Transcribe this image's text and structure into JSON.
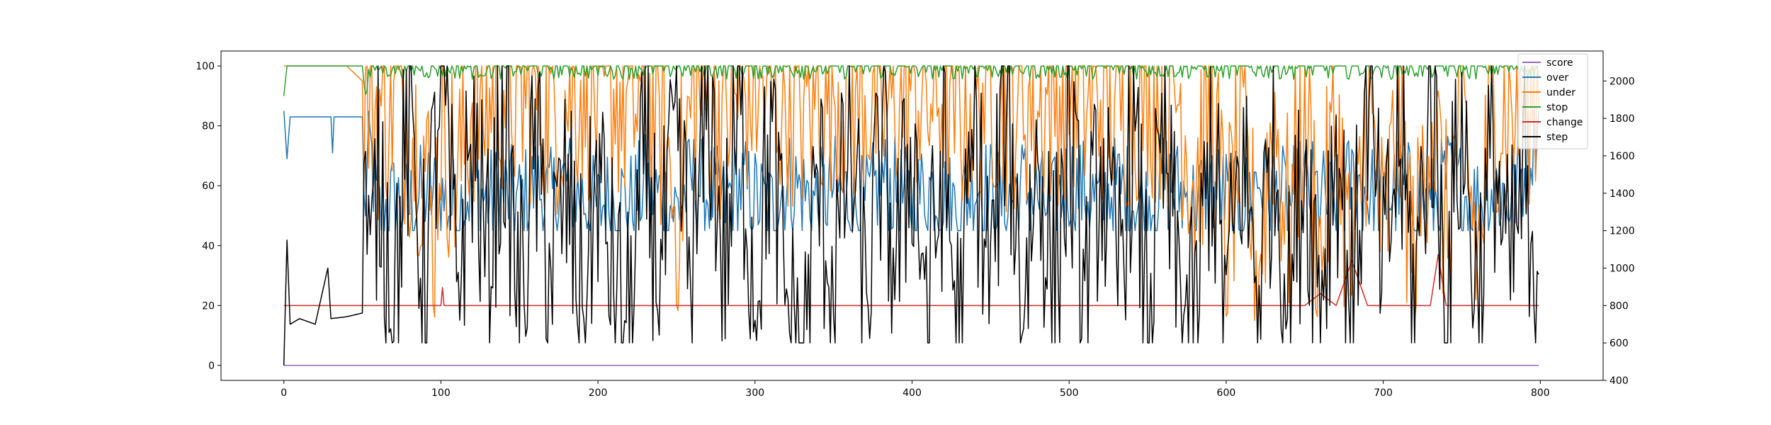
{
  "chart_data": {
    "type": "line",
    "title": "",
    "xlabel": "",
    "ylabel": "",
    "y2label": "",
    "grid": false,
    "legend_position": "top-right",
    "x_range": [
      -40,
      840
    ],
    "ylim_left": [
      -5,
      105
    ],
    "ylim_right": [
      400,
      2160
    ],
    "x_ticks": [
      0,
      100,
      200,
      300,
      400,
      500,
      600,
      700,
      800
    ],
    "y_ticks_left": [
      0,
      20,
      40,
      60,
      80,
      100
    ],
    "y_ticks_right": [
      400,
      600,
      800,
      1000,
      1200,
      1400,
      1600,
      1800,
      2000
    ],
    "x_min": 0,
    "x_max": 799,
    "series": [
      {
        "name": "score",
        "axis": "left",
        "color": "#9467bd",
        "points": [
          [
            0,
            0
          ],
          [
            799,
            0
          ]
        ]
      },
      {
        "name": "over",
        "axis": "left",
        "color": "#1f77b4",
        "points": [
          [
            0,
            85
          ],
          [
            2,
            69
          ],
          [
            4,
            83
          ],
          [
            30,
            83
          ],
          [
            31,
            71
          ],
          [
            32,
            83
          ],
          [
            50,
            83
          ],
          [
            51,
            52
          ],
          [
            55,
            72
          ],
          [
            60,
            50
          ],
          [
            70,
            55
          ],
          [
            80,
            53
          ],
          [
            90,
            58
          ],
          [
            100,
            56
          ],
          [
            110,
            52
          ],
          [
            120,
            60
          ],
          [
            130,
            55
          ],
          [
            140,
            58
          ],
          [
            150,
            54
          ],
          [
            160,
            60
          ],
          [
            170,
            55
          ],
          [
            180,
            62
          ],
          [
            190,
            56
          ],
          [
            200,
            52
          ],
          [
            210,
            58
          ],
          [
            220,
            54
          ],
          [
            230,
            60
          ],
          [
            240,
            56
          ],
          [
            250,
            52
          ],
          [
            260,
            62
          ],
          [
            270,
            58
          ],
          [
            280,
            54
          ],
          [
            290,
            60
          ],
          [
            300,
            56
          ],
          [
            310,
            52
          ],
          [
            320,
            62
          ],
          [
            330,
            58
          ],
          [
            340,
            54
          ],
          [
            350,
            60
          ],
          [
            360,
            56
          ],
          [
            370,
            52
          ],
          [
            380,
            62
          ],
          [
            390,
            58
          ],
          [
            400,
            54
          ],
          [
            410,
            60
          ],
          [
            420,
            56
          ],
          [
            430,
            52
          ],
          [
            440,
            62
          ],
          [
            450,
            58
          ],
          [
            460,
            54
          ],
          [
            470,
            60
          ],
          [
            480,
            56
          ],
          [
            490,
            52
          ],
          [
            500,
            62
          ],
          [
            510,
            58
          ],
          [
            520,
            54
          ],
          [
            530,
            60
          ],
          [
            540,
            56
          ],
          [
            550,
            52
          ],
          [
            560,
            62
          ],
          [
            570,
            58
          ],
          [
            580,
            54
          ],
          [
            590,
            60
          ],
          [
            600,
            56
          ],
          [
            610,
            52
          ],
          [
            620,
            62
          ],
          [
            630,
            58
          ],
          [
            640,
            54
          ],
          [
            650,
            60
          ],
          [
            660,
            56
          ],
          [
            670,
            52
          ],
          [
            680,
            62
          ],
          [
            690,
            58
          ],
          [
            700,
            54
          ],
          [
            710,
            60
          ],
          [
            720,
            56
          ],
          [
            730,
            52
          ],
          [
            740,
            62
          ],
          [
            750,
            58
          ],
          [
            760,
            54
          ],
          [
            770,
            60
          ],
          [
            780,
            56
          ],
          [
            790,
            65
          ],
          [
            799,
            85
          ]
        ],
        "variability_range": [
          45,
          85
        ]
      },
      {
        "name": "under",
        "axis": "left",
        "color": "#ff7f0e",
        "points": [
          [
            0,
            100
          ],
          [
            40,
            100
          ],
          [
            50,
            95
          ],
          [
            60,
            85
          ],
          [
            70,
            90
          ],
          [
            80,
            80
          ],
          [
            90,
            70
          ],
          [
            95,
            40
          ],
          [
            100,
            85
          ],
          [
            110,
            60
          ],
          [
            120,
            90
          ],
          [
            130,
            85
          ],
          [
            140,
            95
          ],
          [
            150,
            88
          ],
          [
            160,
            92
          ],
          [
            170,
            85
          ],
          [
            180,
            90
          ],
          [
            190,
            95
          ],
          [
            200,
            88
          ],
          [
            210,
            92
          ],
          [
            220,
            85
          ],
          [
            230,
            90
          ],
          [
            240,
            80
          ],
          [
            250,
            50
          ],
          [
            260,
            88
          ],
          [
            270,
            92
          ],
          [
            280,
            85
          ],
          [
            290,
            90
          ],
          [
            300,
            95
          ],
          [
            310,
            88
          ],
          [
            320,
            92
          ],
          [
            330,
            85
          ],
          [
            340,
            90
          ],
          [
            350,
            95
          ],
          [
            360,
            88
          ],
          [
            370,
            92
          ],
          [
            380,
            85
          ],
          [
            390,
            90
          ],
          [
            400,
            95
          ],
          [
            410,
            88
          ],
          [
            420,
            92
          ],
          [
            430,
            85
          ],
          [
            440,
            90
          ],
          [
            450,
            95
          ],
          [
            460,
            88
          ],
          [
            470,
            92
          ],
          [
            480,
            85
          ],
          [
            490,
            90
          ],
          [
            500,
            95
          ],
          [
            510,
            88
          ],
          [
            520,
            92
          ],
          [
            530,
            85
          ],
          [
            540,
            90
          ],
          [
            550,
            95
          ],
          [
            560,
            88
          ],
          [
            570,
            92
          ],
          [
            580,
            60
          ],
          [
            590,
            90
          ],
          [
            600,
            40
          ],
          [
            610,
            80
          ],
          [
            620,
            30
          ],
          [
            630,
            85
          ],
          [
            640,
            45
          ],
          [
            650,
            90
          ],
          [
            660,
            35
          ],
          [
            670,
            85
          ],
          [
            680,
            25
          ],
          [
            690,
            90
          ],
          [
            700,
            40
          ],
          [
            710,
            85
          ],
          [
            720,
            30
          ],
          [
            730,
            90
          ],
          [
            740,
            45
          ],
          [
            750,
            85
          ],
          [
            760,
            35
          ],
          [
            770,
            90
          ],
          [
            780,
            85
          ],
          [
            790,
            90
          ],
          [
            799,
            95
          ]
        ],
        "variability_range": [
          15,
          100
        ]
      },
      {
        "name": "stop",
        "axis": "left",
        "color": "#2ca02c",
        "points": [
          [
            0,
            90
          ],
          [
            2,
            100
          ],
          [
            50,
            100
          ],
          [
            52,
            93
          ],
          [
            56,
            100
          ],
          [
            799,
            100
          ]
        ],
        "variability_range": [
          90,
          100
        ]
      },
      {
        "name": "change",
        "axis": "left",
        "color": "#d62728",
        "points": [
          [
            0,
            20
          ],
          [
            100,
            20
          ],
          [
            101,
            26
          ],
          [
            102,
            20
          ],
          [
            650,
            20
          ],
          [
            660,
            24
          ],
          [
            670,
            20
          ],
          [
            680,
            35
          ],
          [
            690,
            20
          ],
          [
            730,
            20
          ],
          [
            735,
            37
          ],
          [
            740,
            20
          ],
          [
            799,
            20
          ]
        ]
      },
      {
        "name": "step",
        "axis": "right",
        "color": "#000000",
        "points": [
          [
            0,
            480
          ],
          [
            2,
            1150
          ],
          [
            4,
            700
          ],
          [
            10,
            730
          ],
          [
            20,
            700
          ],
          [
            28,
            1000
          ],
          [
            30,
            730
          ],
          [
            40,
            740
          ],
          [
            50,
            760
          ],
          [
            51,
            1600
          ],
          [
            55,
            820
          ],
          [
            60,
            1600
          ],
          [
            70,
            900
          ],
          [
            80,
            1800
          ],
          [
            90,
            850
          ],
          [
            100,
            2080
          ],
          [
            110,
            900
          ],
          [
            120,
            1700
          ],
          [
            130,
            1000
          ],
          [
            140,
            1800
          ],
          [
            150,
            800
          ],
          [
            160,
            1600
          ],
          [
            170,
            1000
          ],
          [
            180,
            1400
          ],
          [
            190,
            800
          ],
          [
            200,
            1500
          ],
          [
            210,
            900
          ],
          [
            220,
            650
          ],
          [
            230,
            1600
          ],
          [
            240,
            950
          ],
          [
            250,
            1700
          ],
          [
            260,
            850
          ],
          [
            270,
            2000
          ],
          [
            280,
            1000
          ],
          [
            290,
            1800
          ],
          [
            300,
            900
          ],
          [
            310,
            1700
          ],
          [
            320,
            800
          ],
          [
            330,
            420
          ],
          [
            340,
            1500
          ],
          [
            350,
            900
          ],
          [
            360,
            1700
          ],
          [
            370,
            800
          ],
          [
            380,
            1600
          ],
          [
            390,
            1000
          ],
          [
            400,
            1700
          ],
          [
            410,
            800
          ],
          [
            420,
            1600
          ],
          [
            430,
            600
          ],
          [
            440,
            1700
          ],
          [
            450,
            900
          ],
          [
            460,
            2040
          ],
          [
            470,
            800
          ],
          [
            480,
            1600
          ],
          [
            490,
            900
          ],
          [
            500,
            1700
          ],
          [
            510,
            800
          ],
          [
            520,
            1600
          ],
          [
            530,
            900
          ],
          [
            540,
            1700
          ],
          [
            550,
            800
          ],
          [
            560,
            1600
          ],
          [
            570,
            900
          ],
          [
            580,
            600
          ],
          [
            590,
            1700
          ],
          [
            600,
            800
          ],
          [
            610,
            1600
          ],
          [
            620,
            900
          ],
          [
            630,
            1700
          ],
          [
            640,
            800
          ],
          [
            650,
            1600
          ],
          [
            660,
            900
          ],
          [
            670,
            1700
          ],
          [
            680,
            800
          ],
          [
            690,
            1900
          ],
          [
            700,
            900
          ],
          [
            710,
            1700
          ],
          [
            720,
            800
          ],
          [
            730,
            2000
          ],
          [
            740,
            900
          ],
          [
            750,
            1800
          ],
          [
            760,
            800
          ],
          [
            770,
            1700
          ],
          [
            780,
            900
          ],
          [
            790,
            1500
          ],
          [
            795,
            620
          ],
          [
            799,
            1200
          ]
        ],
        "variability_range": [
          600,
          2080
        ]
      }
    ]
  },
  "legend": {
    "items": [
      {
        "label": "score",
        "color": "#9467bd"
      },
      {
        "label": "over",
        "color": "#1f77b4"
      },
      {
        "label": "under",
        "color": "#ff7f0e"
      },
      {
        "label": "stop",
        "color": "#2ca02c"
      },
      {
        "label": "change",
        "color": "#d62728"
      },
      {
        "label": "step",
        "color": "#000000"
      }
    ]
  }
}
